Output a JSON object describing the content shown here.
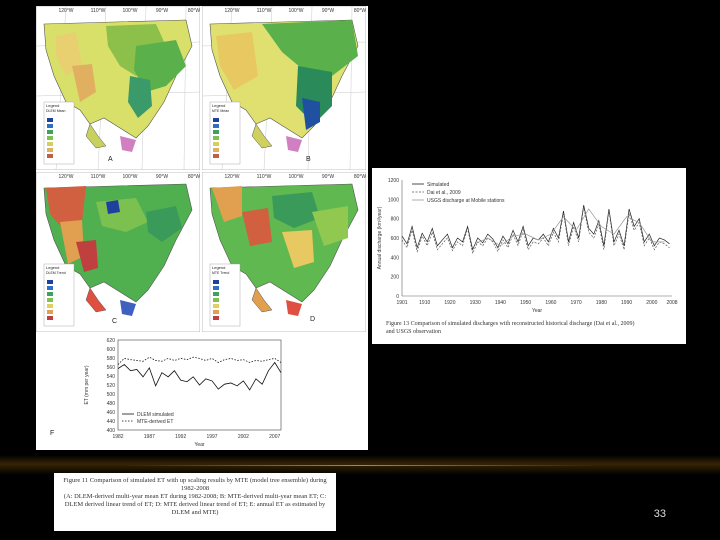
{
  "slide": {
    "page_number": "33",
    "colors": {
      "background": "#000000",
      "accent": "#b7862a"
    }
  },
  "maps": [
    {
      "letter": "A",
      "legend_title": "Legend",
      "legend_subtitle": "DLEM Mean"
    },
    {
      "letter": "B",
      "legend_title": "Legend",
      "legend_subtitle": "MTE Mean"
    },
    {
      "letter": "C",
      "legend_title": "Legend",
      "legend_subtitle": "DLEM Trend"
    },
    {
      "letter": "D",
      "legend_title": "Legend",
      "legend_subtitle": "MTE Trend"
    }
  ],
  "map_top_ticks": [
    "120°W",
    "110°W",
    "100°W",
    "90°W",
    "80°W"
  ],
  "et_chart": {
    "panel_letter": "F",
    "chart_data": {
      "type": "line",
      "ylabel": "ET (mm per year)",
      "xlabel": "Year",
      "x_ticks": [
        "1982",
        "1987",
        "1992",
        "1997",
        "2002",
        "2007"
      ],
      "y_ticks": [
        "400",
        "440",
        "460",
        "480",
        "500",
        "520",
        "540",
        "560",
        "580",
        "600",
        "620"
      ],
      "ylim": [
        400,
        620
      ],
      "legend": [
        "DLEM simulated",
        "MTE-derived ET"
      ],
      "series": [
        {
          "name": "DLEM simulated",
          "style": "solid",
          "x": [
            1982,
            1983,
            1984,
            1985,
            1986,
            1987,
            1988,
            1989,
            1990,
            1991,
            1992,
            1993,
            1994,
            1995,
            1996,
            1997,
            1998,
            1999,
            2000,
            2001,
            2002,
            2003,
            2004,
            2005,
            2006,
            2007,
            2008
          ],
          "values": [
            550,
            560,
            545,
            548,
            530,
            552,
            508,
            540,
            530,
            545,
            522,
            518,
            530,
            510,
            525,
            520,
            500,
            512,
            515,
            508,
            520,
            498,
            525,
            512,
            545,
            565,
            540
          ]
        },
        {
          "name": "MTE-derived ET",
          "style": "dotted",
          "x": [
            1982,
            1983,
            1984,
            1985,
            1986,
            1987,
            1988,
            1989,
            1990,
            1991,
            1992,
            1993,
            1994,
            1995,
            1996,
            1997,
            1998,
            1999,
            2000,
            2001,
            2002,
            2003,
            2004,
            2005,
            2006,
            2007,
            2008
          ],
          "values": [
            560,
            575,
            572,
            570,
            568,
            578,
            570,
            568,
            575,
            570,
            575,
            572,
            578,
            575,
            570,
            575,
            565,
            572,
            575,
            570,
            572,
            565,
            570,
            568,
            572,
            575,
            565
          ]
        }
      ]
    }
  },
  "discharge_chart": {
    "caption_line1": "Figure 13 Comparison of simulated discharges with reconstructed historical discharge (Dai et al., 2009)",
    "caption_line2": "and USGS observation",
    "chart_data": {
      "type": "line",
      "ylabel": "Annual discharge (km³/year)",
      "xlabel": "Year",
      "y_ticks": [
        "0",
        "200",
        "400",
        "600",
        "800",
        "1000",
        "1200"
      ],
      "x_ticks": [
        "1901",
        "1910",
        "1920",
        "1930",
        "1940",
        "1950",
        "1960",
        "1970",
        "1980",
        "1990",
        "2000",
        "2008"
      ],
      "ylim": [
        0,
        1200
      ],
      "legend": [
        "Simulated",
        "Dai et al., 2009",
        "USGS discharge at Mobile stations"
      ],
      "series": [
        {
          "name": "Simulated",
          "style": "solid",
          "x": [
            1901,
            1903,
            1905,
            1907,
            1909,
            1911,
            1913,
            1915,
            1917,
            1919,
            1921,
            1923,
            1925,
            1927,
            1929,
            1931,
            1933,
            1935,
            1937,
            1939,
            1941,
            1943,
            1945,
            1947,
            1949,
            1951,
            1953,
            1955,
            1957,
            1959,
            1961,
            1963,
            1965,
            1967,
            1969,
            1971,
            1973,
            1975,
            1977,
            1979,
            1981,
            1983,
            1985,
            1987,
            1989,
            1991,
            1993,
            1995,
            1997,
            1999,
            2001,
            2003,
            2005,
            2007
          ],
          "values": [
            620,
            540,
            720,
            500,
            650,
            560,
            700,
            520,
            580,
            640,
            500,
            600,
            560,
            720,
            480,
            600,
            550,
            640,
            590,
            500,
            620,
            540,
            680,
            560,
            720,
            520,
            600,
            580,
            640,
            560,
            700,
            600,
            880,
            560,
            760,
            600,
            940,
            700,
            640,
            780,
            520,
            900,
            560,
            680,
            520,
            900,
            720,
            800,
            560,
            640,
            520,
            600,
            580,
            540
          ]
        },
        {
          "name": "Dai et al., 2009",
          "style": "dashed",
          "x": [
            1901,
            1903,
            1905,
            1907,
            1909,
            1911,
            1913,
            1915,
            1917,
            1919,
            1921,
            1923,
            1925,
            1927,
            1929,
            1931,
            1933,
            1935,
            1937,
            1939,
            1941,
            1943,
            1945,
            1947,
            1949,
            1951,
            1953,
            1955,
            1957,
            1959,
            1961,
            1963,
            1965,
            1967,
            1969,
            1971,
            1973,
            1975,
            1977,
            1979,
            1981,
            1983,
            1985,
            1987,
            1989,
            1991,
            1993,
            1995,
            1997,
            1999,
            2001,
            2003,
            2005,
            2007
          ],
          "values": [
            580,
            500,
            680,
            460,
            620,
            520,
            660,
            480,
            540,
            600,
            470,
            560,
            520,
            700,
            440,
            560,
            520,
            600,
            560,
            460,
            580,
            500,
            640,
            520,
            680,
            480,
            560,
            540,
            600,
            520,
            660,
            560,
            860,
            520,
            720,
            560,
            920,
            660,
            600,
            740,
            480,
            880,
            520,
            640,
            480,
            860,
            680,
            760,
            520,
            600,
            480,
            560,
            540,
            500
          ]
        },
        {
          "name": "USGS discharge at Mobile stations",
          "style": "solid-light",
          "x": [
            1930,
            1935,
            1940,
            1945,
            1950,
            1955,
            1960,
            1965,
            1970,
            1975,
            1980,
            1985,
            1990,
            1995,
            2000,
            2005
          ],
          "values": [
            540,
            600,
            520,
            620,
            640,
            580,
            640,
            820,
            680,
            900,
            720,
            640,
            820,
            760,
            560,
            560
          ]
        }
      ]
    }
  },
  "figure_caption": {
    "line1": "Figure 11 Comparison of simulated ET with up scaling results by MTE (model tree ensemble) during",
    "line2": "1982-2008",
    "line3": "(A: DLEM-derived multi-year mean ET during 1982-2008; B: MTE-derived multi-year mean ET; C:",
    "line4": "DLEM derived linear trend of ET; D: MTE derived linear trend of ET; E: annual ET as estimated by",
    "line5": "DLEM and MTE)"
  }
}
